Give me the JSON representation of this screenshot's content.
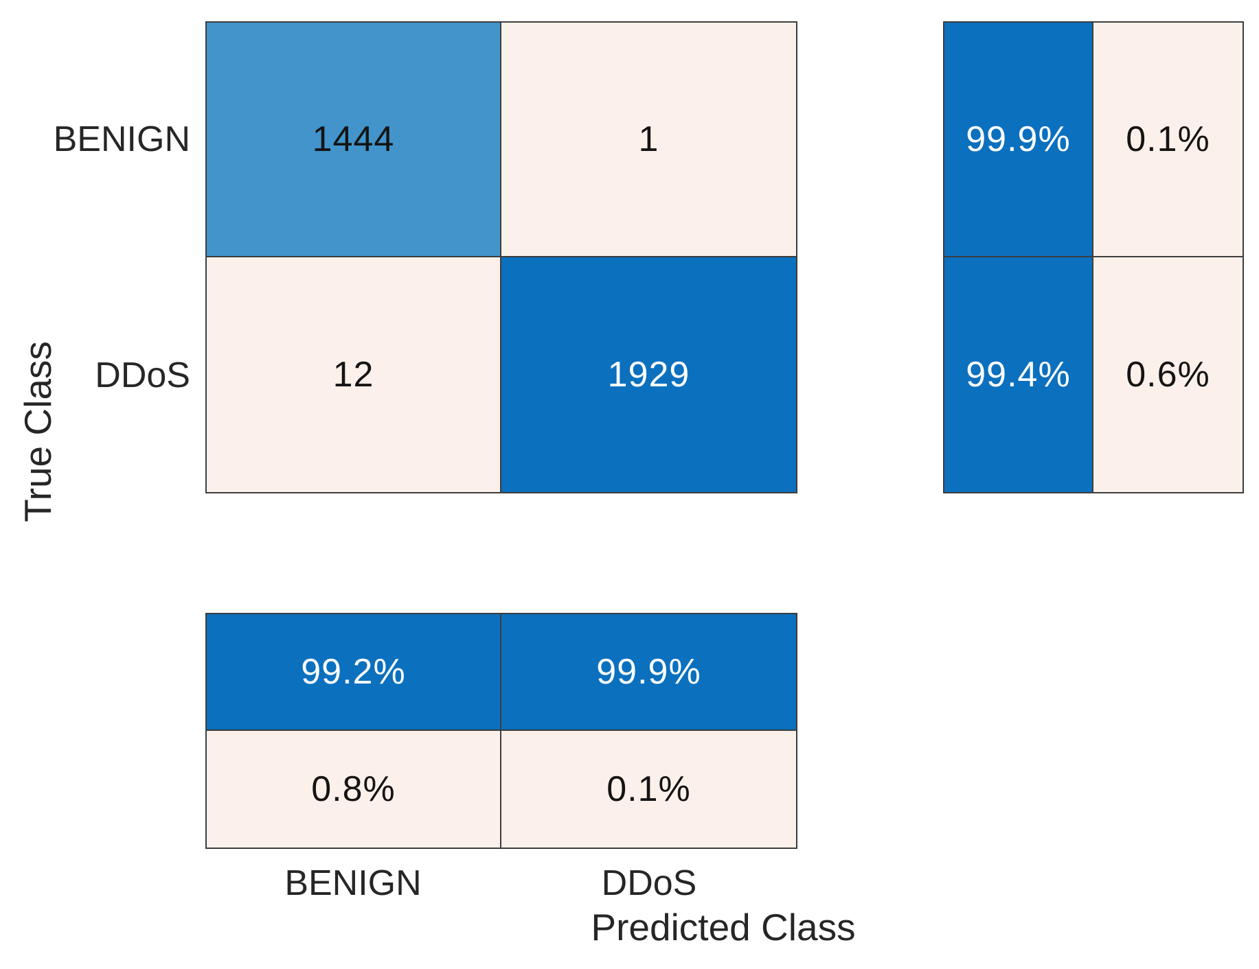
{
  "chart_data": {
    "type": "heatmap",
    "subtype": "confusion_matrix",
    "xlabel": "Predicted Class",
    "ylabel": "True Class",
    "classes": [
      "BENIGN",
      "DDoS"
    ],
    "counts": [
      [
        1444,
        1
      ],
      [
        12,
        1929
      ]
    ],
    "row_summary_percent": [
      [
        "99.9%",
        "0.1%"
      ],
      [
        "99.4%",
        "0.6%"
      ]
    ],
    "column_summary_percent": [
      [
        "99.2%",
        "99.9%"
      ],
      [
        "0.8%",
        "0.1%"
      ]
    ],
    "layout": {
      "grid_on": false,
      "legend": "none",
      "row_summary_position": "right",
      "column_summary_position": "bottom"
    }
  },
  "colors": {
    "correct_strong": "#0b70be",
    "correct_medium": "#4294cb",
    "incorrect_light": "#fcf1ea",
    "grid_line": "#3d3d3d",
    "label_text": "#262626",
    "cell_text_dark": "#141414",
    "cell_text_light": "#ffffff",
    "background": "#ffffff"
  }
}
